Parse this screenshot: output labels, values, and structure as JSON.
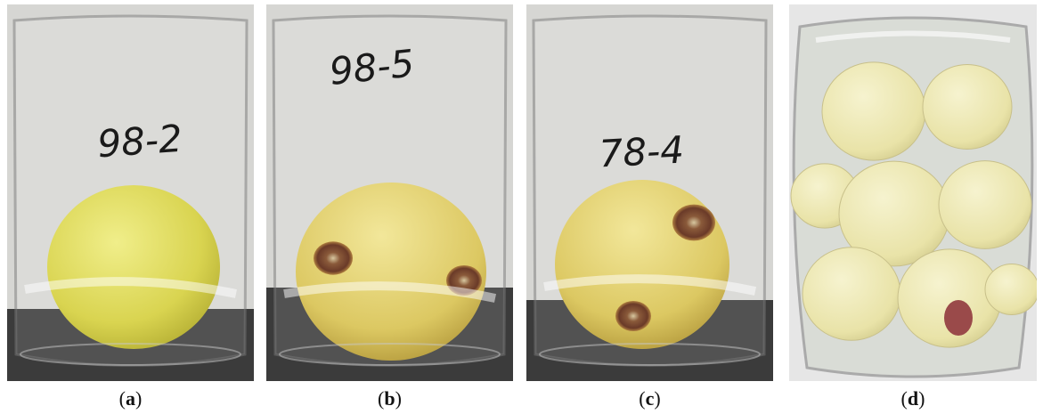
{
  "panels": [
    {
      "handwriting": "98-2",
      "caption": [
        "(",
        "a",
        ")"
      ]
    },
    {
      "handwriting": "98-5",
      "caption": [
        "(",
        "b",
        ")"
      ]
    },
    {
      "handwriting": "78-4",
      "caption": [
        "(",
        "c",
        ")"
      ]
    },
    {
      "handwriting": null,
      "caption": [
        "(",
        "d",
        ")"
      ]
    }
  ]
}
